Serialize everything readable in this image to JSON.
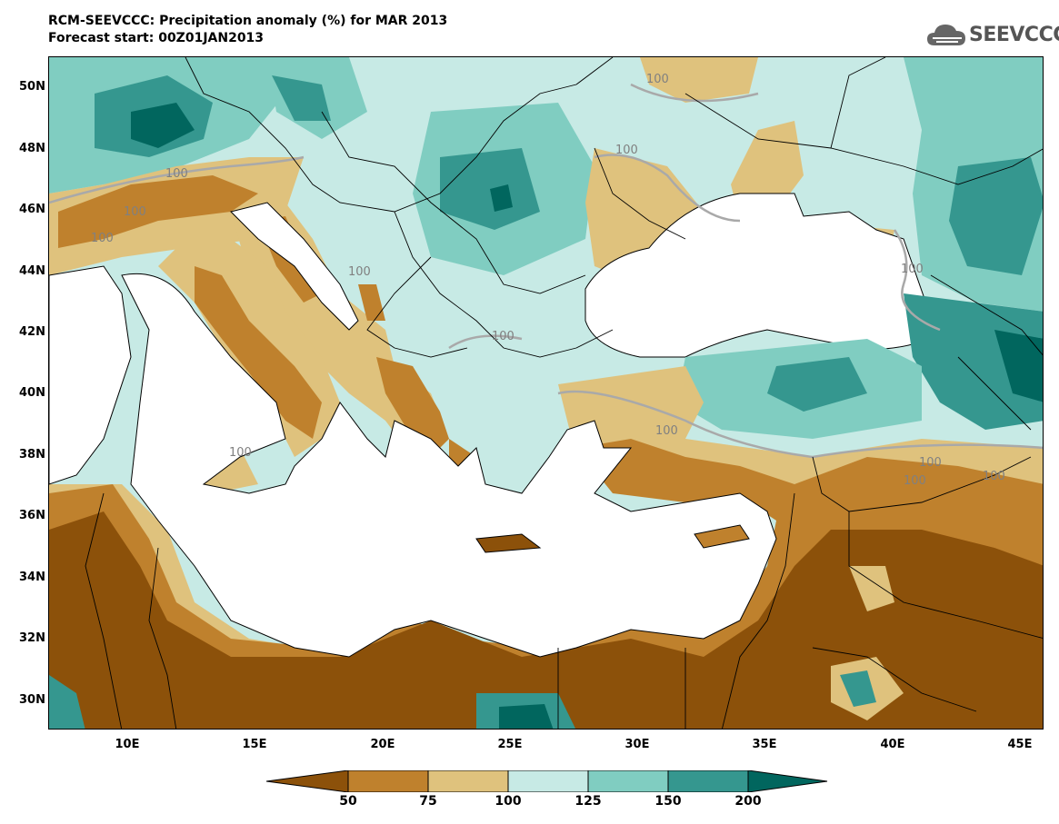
{
  "header": {
    "title_line1": "RCM-SEEVCCC: Precipitation anomaly (%) for MAR 2013",
    "title_line2": "Forecast start: 00Z01JAN2013",
    "logo_text": "SEEVCCC"
  },
  "map": {
    "lat_ticks": [
      "50N",
      "48N",
      "46N",
      "44N",
      "42N",
      "40N",
      "38N",
      "36N",
      "34N",
      "32N",
      "30N"
    ],
    "lon_ticks": [
      "10E",
      "15E",
      "20E",
      "25E",
      "30E",
      "35E",
      "40E",
      "45E"
    ],
    "contour_labels": [
      "100",
      "100",
      "100",
      "100",
      "100",
      "100",
      "100",
      "100",
      "100",
      "100",
      "100",
      "100",
      "100"
    ],
    "colors": {
      "below_50": "#8c510a",
      "50_75": "#bf812d",
      "75_100": "#dfc27d",
      "100_125": "#c7eae5",
      "125_150": "#80cdc1",
      "150_200": "#35978f",
      "above_200": "#01665e",
      "sea": "#ffffff",
      "contour_100": "#a9a9a9"
    }
  },
  "colorbar": {
    "labels": [
      "50",
      "75",
      "100",
      "125",
      "150",
      "200"
    ],
    "colors": [
      "#8c510a",
      "#bf812d",
      "#dfc27d",
      "#c7eae5",
      "#80cdc1",
      "#35978f",
      "#01665e"
    ]
  }
}
